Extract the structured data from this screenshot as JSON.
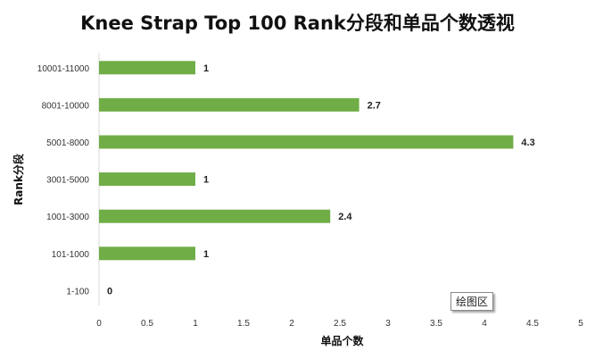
{
  "chart_data": {
    "type": "bar",
    "orientation": "horizontal",
    "title": "Knee Strap Top 100 Rank分段和单品个数透视",
    "xlabel": "单品个数",
    "ylabel": "Rank分段",
    "categories": [
      "10001-11000",
      "8001-10000",
      "5001-8000",
      "3001-5000",
      "1001-3000",
      "101-1000",
      "1-100"
    ],
    "values": [
      1,
      2.7,
      4.3,
      1,
      2.4,
      1,
      0
    ],
    "data_labels": [
      "1",
      "2.7",
      "4.3",
      "1",
      "2.4",
      "1",
      "0"
    ],
    "xlim": [
      0,
      5
    ],
    "xticks": [
      "0",
      "0.5",
      "1",
      "1.5",
      "2",
      "2.5",
      "3",
      "3.5",
      "4",
      "4.5",
      "5"
    ],
    "grid": false,
    "bar_color": "#70ad47",
    "legend": "none"
  },
  "tooltip": {
    "text": "绘图区"
  }
}
